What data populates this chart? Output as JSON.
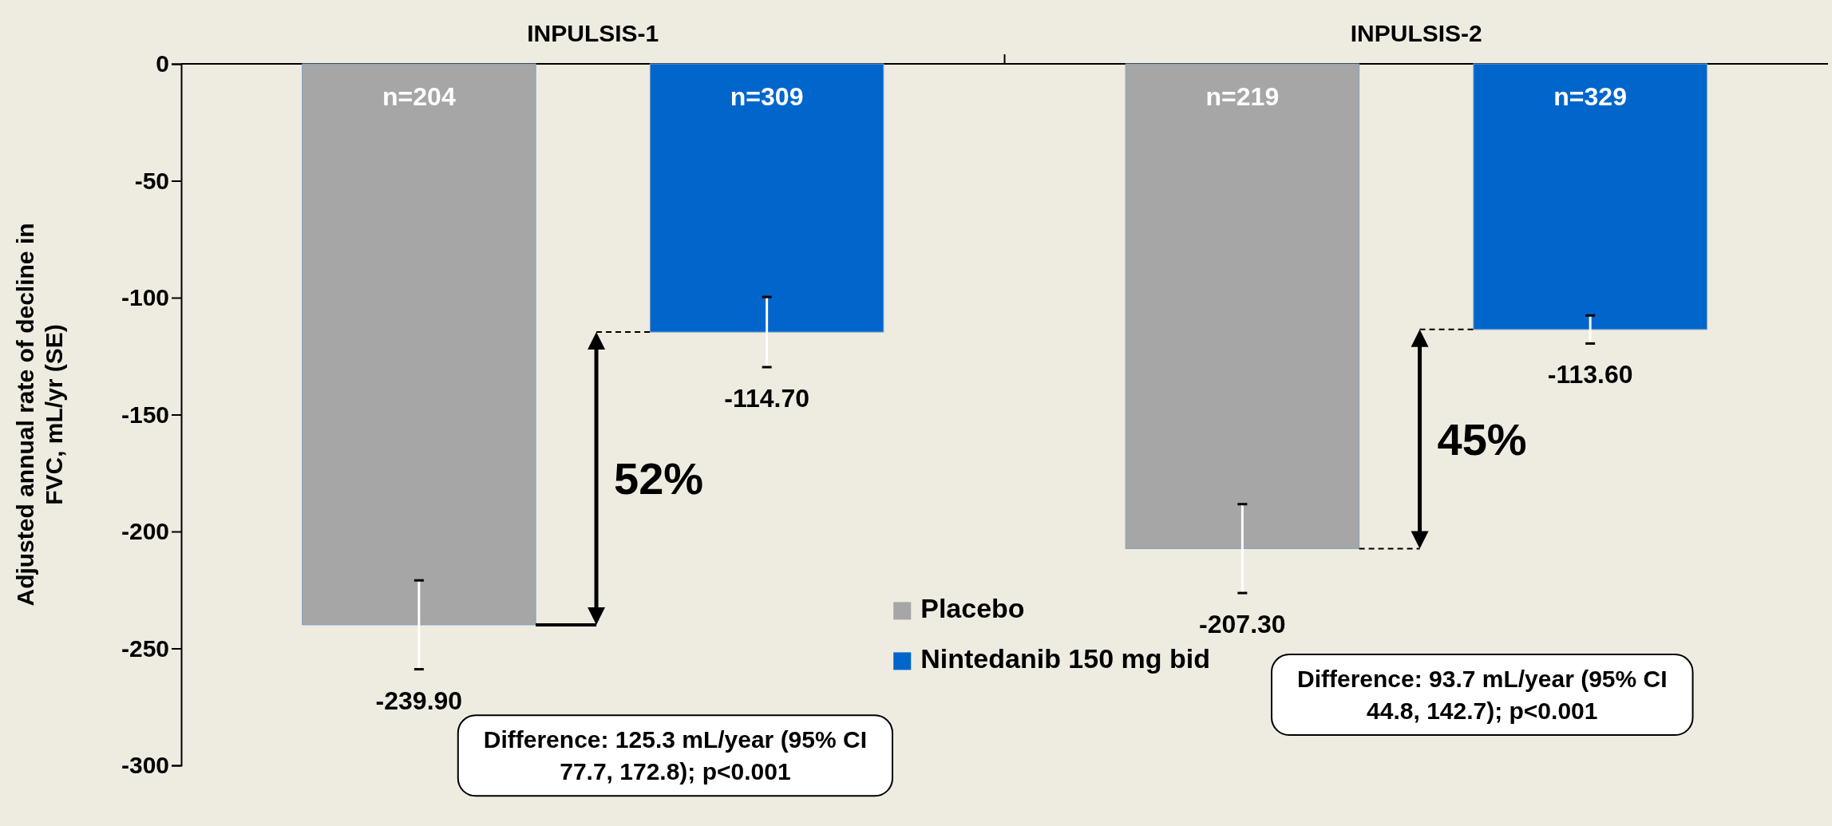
{
  "chart_data": {
    "type": "bar",
    "ylabel": "Adjusted annual rate of decline in FVC, mL/yr (SE)",
    "categories": [
      "INPULSIS-1",
      "INPULSIS-2"
    ],
    "series": [
      {
        "name": "Placebo",
        "color": "#a6a6a6",
        "values": [
          -239.9,
          -207.3
        ],
        "errors": [
          19,
          19
        ],
        "value_labels": [
          "-239.90",
          "-207.30"
        ]
      },
      {
        "name": "Nintedanib 150 mg bid",
        "color": "#0066cc",
        "values": [
          -114.7,
          -113.6
        ],
        "errors": [
          15,
          6
        ],
        "value_labels": [
          "-114.70",
          "-113.60"
        ]
      }
    ],
    "ylim": [
      -300,
      0
    ],
    "yticks": [
      0,
      -50,
      -100,
      -150,
      -200,
      -250,
      -300
    ],
    "legend": "bottom",
    "annotations": [
      "n=204",
      "n=309",
      "n=219",
      "n=329",
      "52%",
      "45%",
      "Difference: 125.3 mL/year (95% CI 77.7, 172.8); p<0.001",
      "Difference: 93.7 mL/year (95% CI 44.8, 142.7); p<0.001"
    ]
  }
}
